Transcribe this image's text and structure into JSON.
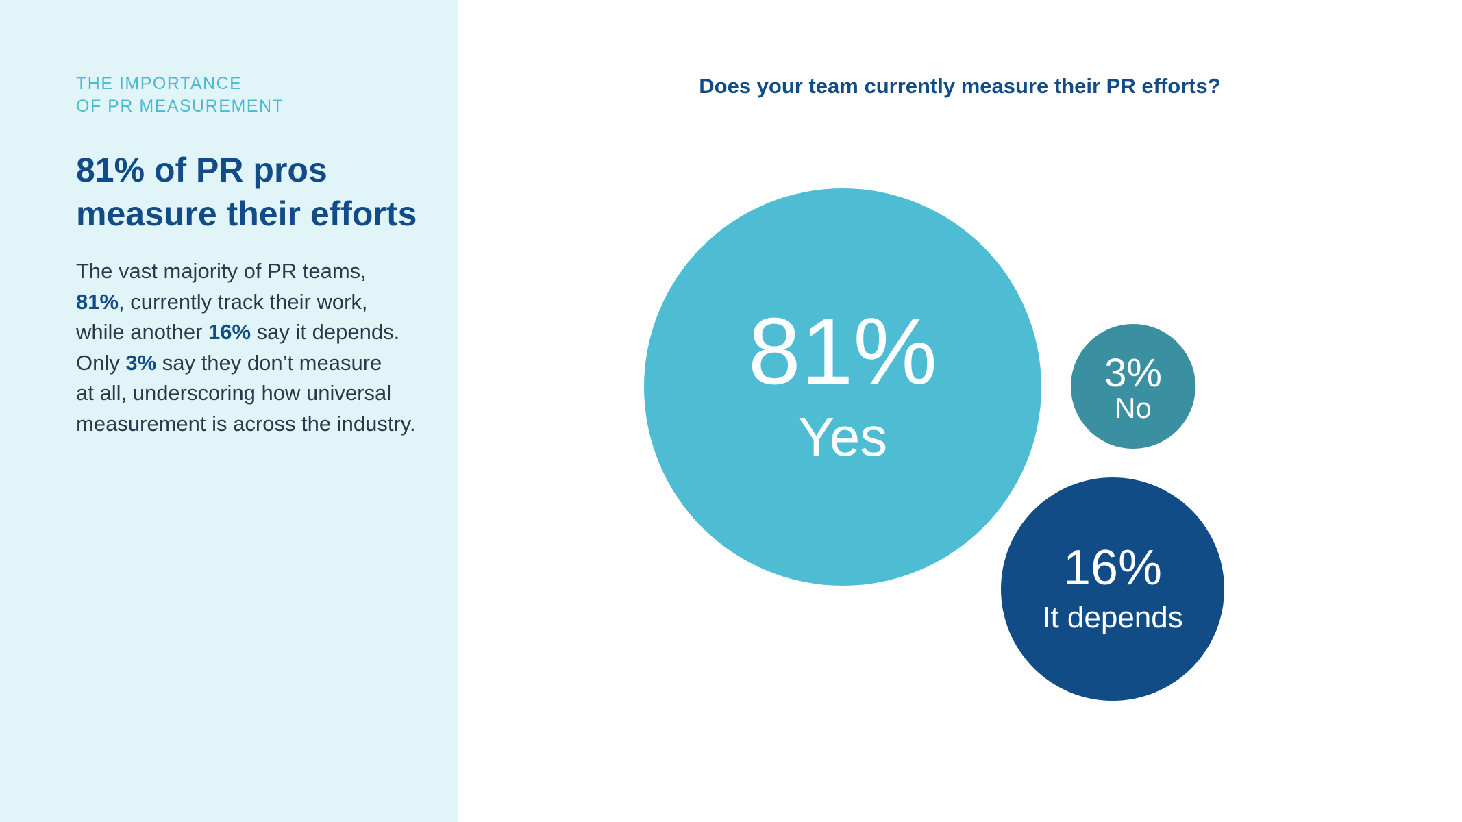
{
  "sidebar": {
    "eyebrow_line1": "THE IMPORTANCE",
    "eyebrow_line2": "OF PR MEASUREMENT",
    "headline_line1": "81% of PR pros",
    "headline_line2": "measure their efforts",
    "body": {
      "l1": "The vast majority of PR teams,",
      "l2_hl": "81%",
      "l2": ", currently track their work,",
      "l3_pre": "while another ",
      "l3_hl": "16%",
      "l3_post": " say it depends.",
      "l4_pre": "Only ",
      "l4_hl": "3%",
      "l4_post": " say they don’t measure",
      "l5": "at all, underscoring how universal",
      "l6": "measurement is across the industry."
    }
  },
  "colors": {
    "sidebar_bg": "#e1f5f8",
    "eyebrow": "#4db9d1",
    "navy": "#124c87",
    "yes": "#4ebcd3",
    "no": "#3a8fa0",
    "depends": "#124c87"
  },
  "chart_data": {
    "type": "bubble",
    "title": "Does your team currently measure their PR efforts?",
    "unit": "%",
    "categories": [
      "Yes",
      "No",
      "It depends"
    ],
    "values": [
      81,
      3,
      16
    ],
    "labels": [
      "81%",
      "3%",
      "16%"
    ]
  }
}
